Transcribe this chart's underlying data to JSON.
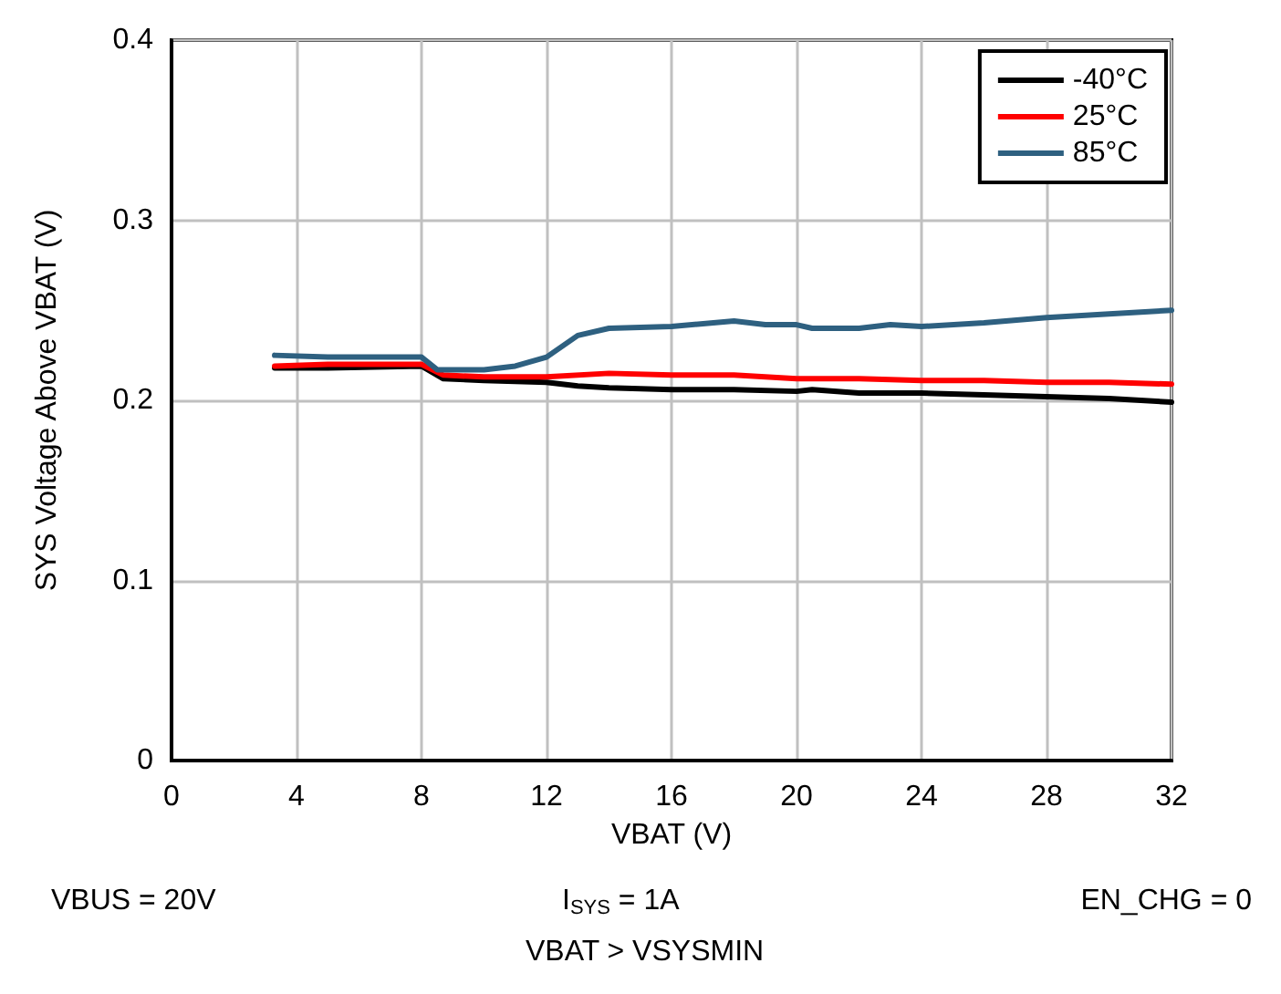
{
  "chart_data": {
    "type": "line",
    "xlabel": "VBAT (V)",
    "ylabel": "SYS Voltage Above VBAT (V)",
    "xlim": [
      0,
      32
    ],
    "xticks": [
      0,
      4,
      8,
      12,
      16,
      20,
      24,
      28,
      32
    ],
    "ylim": [
      0,
      0.4
    ],
    "yticks": [
      0,
      0.1,
      0.2,
      0.3,
      0.4
    ],
    "grid": true,
    "legend": "top right",
    "marker": "none",
    "line_style": "solid",
    "annotations": [
      "VBUS = 20V",
      "I$_{SYS}$ = 1A",
      "EN_CHG = 0",
      "VBAT > VSYSMIN"
    ],
    "series": [
      {
        "name": "-40°C",
        "color": "#000000",
        "x": [
          3.3,
          5,
          8,
          8.7,
          10,
          12,
          13,
          14,
          16,
          18,
          20,
          20.5,
          22,
          24,
          26,
          28,
          30,
          32
        ],
        "values": [
          0.218,
          0.218,
          0.219,
          0.212,
          0.211,
          0.21,
          0.208,
          0.207,
          0.206,
          0.206,
          0.205,
          0.206,
          0.204,
          0.204,
          0.203,
          0.202,
          0.201,
          0.199
        ]
      },
      {
        "name": "25°C",
        "color": "#ff0000",
        "x": [
          3.3,
          5,
          8,
          8.7,
          10,
          12,
          14,
          16,
          18,
          20,
          22,
          24,
          26,
          28,
          30,
          32
        ],
        "values": [
          0.219,
          0.22,
          0.22,
          0.214,
          0.213,
          0.213,
          0.215,
          0.214,
          0.214,
          0.212,
          0.212,
          0.211,
          0.211,
          0.21,
          0.21,
          0.209
        ]
      },
      {
        "name": "85°C",
        "color": "#2e6080",
        "x": [
          3.3,
          5,
          7,
          8,
          8.5,
          10,
          11,
          12,
          13,
          14,
          16,
          18,
          19,
          20,
          20.5,
          22,
          23,
          24,
          26,
          28,
          29,
          30,
          32
        ],
        "values": [
          0.225,
          0.224,
          0.224,
          0.224,
          0.217,
          0.217,
          0.219,
          0.224,
          0.236,
          0.24,
          0.241,
          0.244,
          0.242,
          0.242,
          0.24,
          0.24,
          0.242,
          0.241,
          0.243,
          0.246,
          0.247,
          0.248,
          0.25
        ]
      }
    ]
  }
}
